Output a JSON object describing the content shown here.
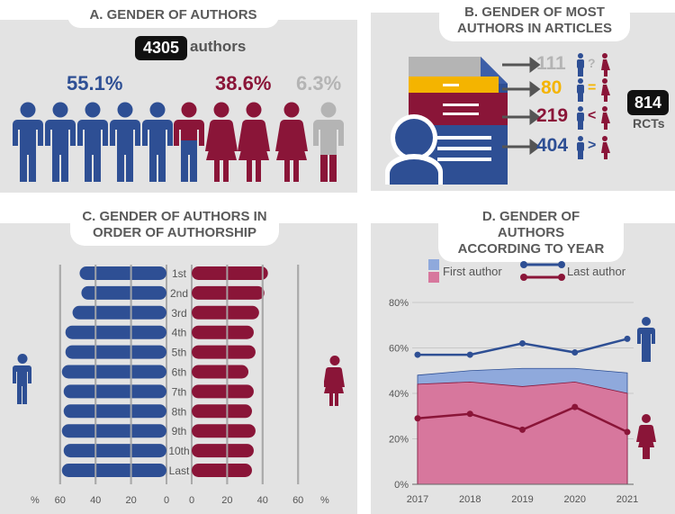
{
  "colors": {
    "blue": "#2e4f94",
    "red": "#8a1538",
    "gray": "#b4b4b4",
    "yellow": "#f4b400",
    "light_blue": "#8fa9dc",
    "pink": "#d7779d"
  },
  "panel_a": {
    "title": "A. GENDER OF AUTHORS",
    "total": "4305",
    "total_label": "authors",
    "pct_male": "55.1%",
    "pct_female": "38.6%",
    "pct_unknown": "6.3%"
  },
  "panel_b": {
    "title_line1": "B. GENDER OF MOST",
    "title_line2": "AUTHORS IN ARTICLES",
    "rows": [
      {
        "value": "111",
        "symbol": "?"
      },
      {
        "value": "80",
        "symbol": "="
      },
      {
        "value": "219",
        "symbol": "<"
      },
      {
        "value": "404",
        "symbol": ">"
      }
    ],
    "rct_count": "814",
    "rct_label": "RCTs"
  },
  "panel_c": {
    "title_line1": "C. GENDER OF AUTHORS IN",
    "title_line2": "ORDER OF AUTHORSHIP",
    "pct_left": "%",
    "pct_right": "%",
    "left_ticks": [
      "60",
      "40",
      "20",
      "0"
    ],
    "right_ticks": [
      "0",
      "20",
      "40",
      "60"
    ]
  },
  "panel_d": {
    "title_line1": "D. GENDER OF AUTHORS",
    "title_line2": "ACCORDING TO YEAR",
    "legend_first": "First author",
    "legend_last": "Last author"
  },
  "chart_data": [
    {
      "type": "bar",
      "title": "C. GENDER OF AUTHORS IN ORDER OF AUTHORSHIP",
      "orientation": "horizontal-diverging",
      "categories": [
        "1st",
        "2nd",
        "3rd",
        "4th",
        "5th",
        "6th",
        "7th",
        "8th",
        "9th",
        "10th",
        "Last"
      ],
      "series": [
        {
          "name": "Men",
          "values": [
            49,
            48,
            53,
            57,
            57,
            59,
            58,
            58,
            59,
            58,
            59
          ]
        },
        {
          "name": "Women",
          "values": [
            43,
            41,
            38,
            35,
            36,
            32,
            35,
            34,
            36,
            35,
            34
          ]
        }
      ],
      "xlim": [
        0,
        60
      ],
      "ticks": [
        0,
        20,
        40,
        60
      ]
    },
    {
      "type": "line",
      "title": "D. GENDER OF AUTHORS ACCORDING TO YEAR",
      "x": [
        "2017",
        "2018",
        "2019",
        "2020",
        "2021"
      ],
      "series": [
        {
          "name": "First author (men)",
          "kind": "area",
          "values": [
            48,
            50,
            51,
            51,
            49
          ]
        },
        {
          "name": "First author (women)",
          "kind": "area",
          "values": [
            44,
            45,
            43,
            45,
            40
          ]
        },
        {
          "name": "Last author (men)",
          "kind": "line",
          "values": [
            57,
            57,
            62,
            58,
            64
          ]
        },
        {
          "name": "Last author (women)",
          "kind": "line",
          "values": [
            29,
            31,
            24,
            34,
            23
          ]
        }
      ],
      "ylim": [
        0,
        80
      ],
      "yticks": [
        "0%",
        "20%",
        "40%",
        "60%",
        "80%"
      ]
    }
  ]
}
